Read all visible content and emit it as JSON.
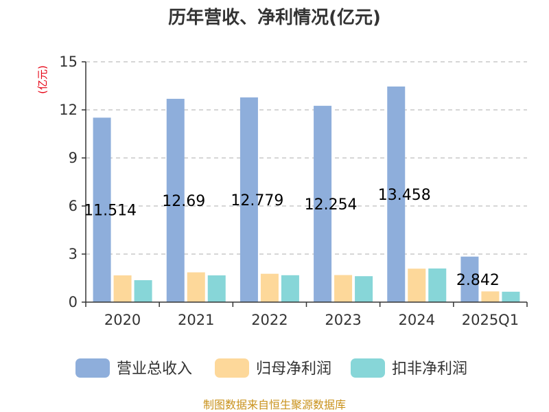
{
  "chart_data": {
    "type": "bar",
    "title": "历年营收、净利情况(亿元)",
    "ylabel": "(亿元)",
    "ylim": [
      0,
      15
    ],
    "yticks": [
      "0",
      "3",
      "6",
      "9",
      "12",
      "15"
    ],
    "grid": true,
    "legend_position": "bottom",
    "categories": [
      "2020",
      "2021",
      "2022",
      "2023",
      "2024",
      "2025Q1"
    ],
    "series": [
      {
        "name": "营业总收入",
        "color": "#8eaedb",
        "values": [
          11.514,
          12.69,
          12.779,
          12.254,
          13.458,
          2.842
        ],
        "labels": [
          "11.514",
          "12.69",
          "12.779",
          "12.254",
          "13.458",
          "2.842"
        ]
      },
      {
        "name": "归母净利润",
        "color": "#fdd89a",
        "values": [
          1.67,
          1.86,
          1.77,
          1.69,
          2.09,
          0.67
        ]
      },
      {
        "name": "扣非净利润",
        "color": "#87d6d8",
        "values": [
          1.37,
          1.67,
          1.68,
          1.62,
          2.1,
          0.65
        ]
      }
    ],
    "source": "制图数据来自恒生聚源数据库"
  }
}
